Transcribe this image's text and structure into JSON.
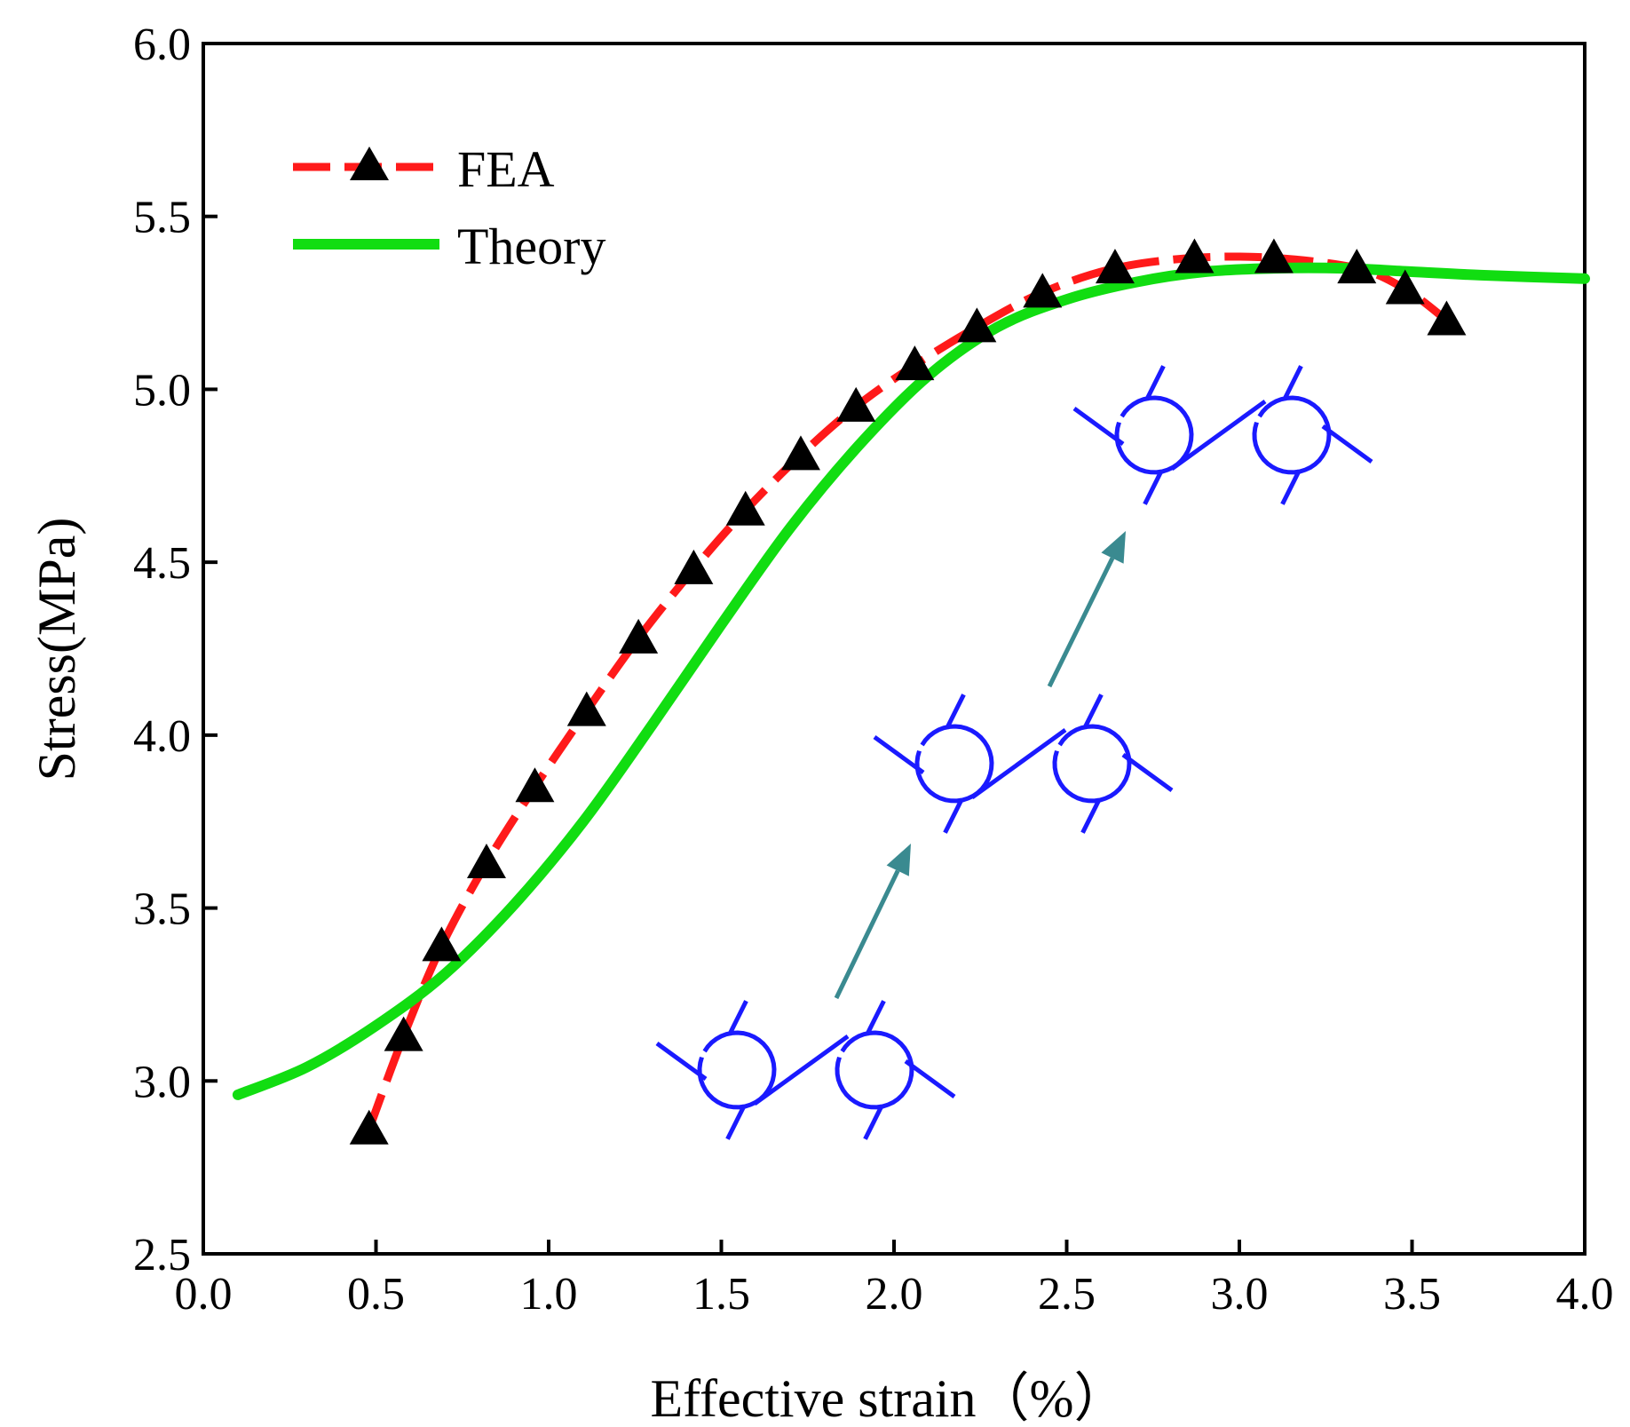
{
  "chart_data": {
    "type": "line",
    "title": "",
    "xlabel": "Effective strain（%）",
    "ylabel": "Stress(MPa)",
    "xlim": [
      0.0,
      4.0
    ],
    "ylim": [
      2.5,
      6.0
    ],
    "xticks": [
      "0.0",
      "0.5",
      "1.0",
      "1.5",
      "2.0",
      "2.5",
      "3.0",
      "3.5",
      "4.0"
    ],
    "yticks": [
      "2.5",
      "3.0",
      "3.5",
      "4.0",
      "4.5",
      "5.0",
      "5.5",
      "6.0"
    ],
    "grid": false,
    "legend_position": "top-left",
    "series": [
      {
        "name": "FEA",
        "style": "dashed line with triangle markers",
        "color": "#ff1a1a",
        "marker_color": "#000000",
        "x": [
          0.48,
          0.58,
          0.69,
          0.82,
          0.96,
          1.11,
          1.26,
          1.42,
          1.57,
          1.73,
          1.89,
          2.06,
          2.24,
          2.43,
          2.64,
          2.87,
          3.1,
          3.34,
          3.48,
          3.6
        ],
        "y": [
          2.86,
          3.13,
          3.39,
          3.63,
          3.85,
          4.07,
          4.28,
          4.48,
          4.65,
          4.81,
          4.95,
          5.07,
          5.18,
          5.28,
          5.35,
          5.38,
          5.38,
          5.35,
          5.29,
          5.2
        ]
      },
      {
        "name": "Theory",
        "style": "solid line",
        "color": "#11dd11",
        "x": [
          0.1,
          0.3,
          0.5,
          0.7,
          0.9,
          1.1,
          1.3,
          1.5,
          1.7,
          1.9,
          2.1,
          2.3,
          2.5,
          2.7,
          2.9,
          3.1,
          3.3,
          3.5,
          3.7,
          4.0
        ],
        "y": [
          2.96,
          3.04,
          3.16,
          3.31,
          3.51,
          3.75,
          4.03,
          4.32,
          4.6,
          4.84,
          5.04,
          5.18,
          5.26,
          5.31,
          5.34,
          5.35,
          5.35,
          5.34,
          5.33,
          5.32
        ]
      }
    ],
    "annotations": [
      {
        "type": "structure-diagram",
        "description": "cell-shape-initial",
        "color": "#1a1aff"
      },
      {
        "type": "structure-diagram",
        "description": "cell-shape-intermediate",
        "color": "#1a1aff"
      },
      {
        "type": "structure-diagram",
        "description": "cell-shape-final",
        "color": "#1a1aff"
      },
      {
        "type": "arrow",
        "color": "#3a8a90"
      },
      {
        "type": "arrow",
        "color": "#3a8a90"
      }
    ]
  }
}
